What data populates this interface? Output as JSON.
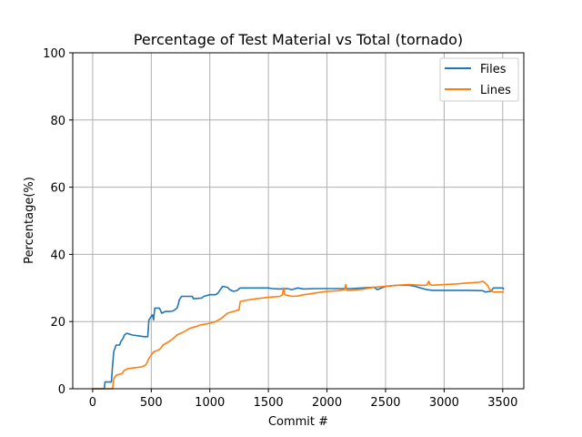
{
  "chart_data": {
    "type": "line",
    "title": "Percentage of Test Material vs Total (tornado)",
    "xlabel": "Commit #",
    "ylabel": "Percentage(%)",
    "xlim": [
      -170,
      3680
    ],
    "ylim": [
      0,
      100
    ],
    "xticks": [
      0,
      500,
      1000,
      1500,
      2000,
      2500,
      3000,
      3500
    ],
    "yticks": [
      0,
      20,
      40,
      60,
      80,
      100
    ],
    "grid": true,
    "legend_position": "top-right",
    "series": [
      {
        "name": "Files",
        "color": "#1f77b4",
        "points": [
          [
            0,
            0
          ],
          [
            100,
            0
          ],
          [
            105,
            2
          ],
          [
            160,
            2
          ],
          [
            170,
            7
          ],
          [
            180,
            11
          ],
          [
            190,
            12
          ],
          [
            200,
            13
          ],
          [
            230,
            13
          ],
          [
            240,
            14
          ],
          [
            260,
            15
          ],
          [
            270,
            16
          ],
          [
            290,
            16.5
          ],
          [
            340,
            16
          ],
          [
            380,
            15.8
          ],
          [
            440,
            15.5
          ],
          [
            470,
            15.5
          ],
          [
            480,
            20.5
          ],
          [
            500,
            21.5
          ],
          [
            510,
            22
          ],
          [
            520,
            20.5
          ],
          [
            530,
            24
          ],
          [
            570,
            24
          ],
          [
            590,
            22.5
          ],
          [
            620,
            23
          ],
          [
            660,
            23
          ],
          [
            690,
            23.2
          ],
          [
            720,
            24
          ],
          [
            730,
            25
          ],
          [
            740,
            26.5
          ],
          [
            760,
            27.5
          ],
          [
            800,
            27.5
          ],
          [
            850,
            27.5
          ],
          [
            860,
            26.8
          ],
          [
            930,
            27
          ],
          [
            950,
            27.5
          ],
          [
            980,
            27.8
          ],
          [
            1000,
            28
          ],
          [
            1050,
            28
          ],
          [
            1070,
            28.5
          ],
          [
            1090,
            29.5
          ],
          [
            1110,
            30.5
          ],
          [
            1150,
            30.2
          ],
          [
            1170,
            29.5
          ],
          [
            1200,
            29
          ],
          [
            1230,
            29.2
          ],
          [
            1260,
            30
          ],
          [
            1400,
            30
          ],
          [
            1500,
            30
          ],
          [
            1530,
            29.8
          ],
          [
            1600,
            29.7
          ],
          [
            1660,
            29.8
          ],
          [
            1700,
            29.5
          ],
          [
            1750,
            30
          ],
          [
            1800,
            29.7
          ],
          [
            1900,
            29.8
          ],
          [
            2000,
            29.8
          ],
          [
            2200,
            29.8
          ],
          [
            2300,
            30
          ],
          [
            2400,
            30.2
          ],
          [
            2430,
            29.5
          ],
          [
            2500,
            30.5
          ],
          [
            2600,
            30.8
          ],
          [
            2700,
            30.8
          ],
          [
            2750,
            30.5
          ],
          [
            2800,
            30
          ],
          [
            2850,
            29.5
          ],
          [
            2900,
            29.3
          ],
          [
            3000,
            29.3
          ],
          [
            3200,
            29.3
          ],
          [
            3330,
            29.2
          ],
          [
            3350,
            28.8
          ],
          [
            3400,
            29
          ],
          [
            3420,
            30
          ],
          [
            3500,
            30
          ],
          [
            3510,
            29.6
          ]
        ]
      },
      {
        "name": "Lines",
        "color": "#ff7f0e",
        "points": [
          [
            0,
            0
          ],
          [
            100,
            0
          ],
          [
            170,
            0
          ],
          [
            180,
            3
          ],
          [
            200,
            4
          ],
          [
            250,
            4.5
          ],
          [
            270,
            5.5
          ],
          [
            300,
            6
          ],
          [
            350,
            6.2
          ],
          [
            420,
            6.5
          ],
          [
            450,
            7
          ],
          [
            460,
            7.5
          ],
          [
            480,
            9
          ],
          [
            500,
            10
          ],
          [
            520,
            11
          ],
          [
            560,
            11.5
          ],
          [
            580,
            12
          ],
          [
            600,
            13
          ],
          [
            650,
            14
          ],
          [
            690,
            15
          ],
          [
            720,
            16
          ],
          [
            780,
            17
          ],
          [
            830,
            18
          ],
          [
            880,
            18.5
          ],
          [
            920,
            19
          ],
          [
            970,
            19.3
          ],
          [
            1000,
            19.5
          ],
          [
            1050,
            20
          ],
          [
            1100,
            21
          ],
          [
            1150,
            22.5
          ],
          [
            1200,
            23
          ],
          [
            1250,
            23.5
          ],
          [
            1260,
            26
          ],
          [
            1300,
            26.3
          ],
          [
            1400,
            26.8
          ],
          [
            1500,
            27.2
          ],
          [
            1600,
            27.5
          ],
          [
            1620,
            28
          ],
          [
            1630,
            30
          ],
          [
            1640,
            28
          ],
          [
            1700,
            27.5
          ],
          [
            1750,
            27.6
          ],
          [
            1800,
            28
          ],
          [
            1850,
            28.2
          ],
          [
            1900,
            28.5
          ],
          [
            2000,
            29
          ],
          [
            2100,
            29.2
          ],
          [
            2150,
            29.5
          ],
          [
            2160,
            31
          ],
          [
            2170,
            29.3
          ],
          [
            2200,
            29.3
          ],
          [
            2300,
            29.6
          ],
          [
            2400,
            30.2
          ],
          [
            2500,
            30.5
          ],
          [
            2600,
            30.8
          ],
          [
            2700,
            31
          ],
          [
            2800,
            30.8
          ],
          [
            2850,
            30.8
          ],
          [
            2870,
            32
          ],
          [
            2880,
            31
          ],
          [
            2900,
            30.8
          ],
          [
            3000,
            31
          ],
          [
            3100,
            31.2
          ],
          [
            3200,
            31.5
          ],
          [
            3300,
            31.7
          ],
          [
            3330,
            32
          ],
          [
            3350,
            31.5
          ],
          [
            3370,
            30.8
          ],
          [
            3390,
            29.5
          ],
          [
            3420,
            28.8
          ],
          [
            3500,
            28.8
          ],
          [
            3510,
            28.8
          ]
        ]
      }
    ]
  }
}
